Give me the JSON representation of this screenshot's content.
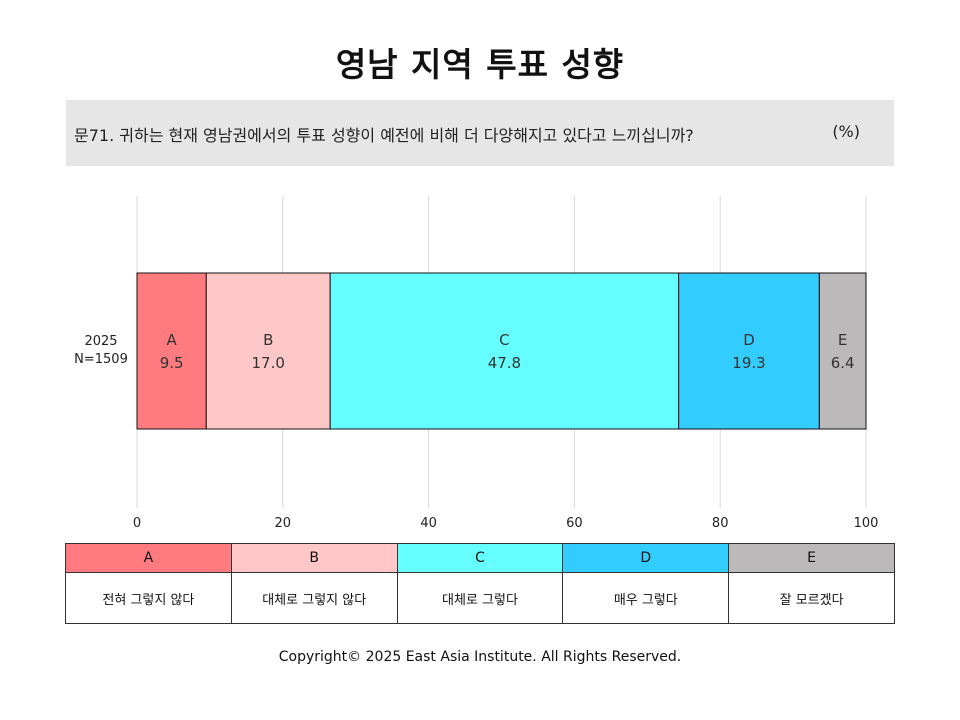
{
  "title": "영남 지역 투표 성향",
  "question": {
    "text": "문71. 귀하는 현재 영남권에서의 투표 성향이 예전에 비해 더 다양해지고 있다고 느끼십니까?",
    "unit": "(%)"
  },
  "chart_data": {
    "type": "bar",
    "orientation": "horizontal",
    "stacked": true,
    "categories": [
      "2025\nN=1509"
    ],
    "category_lines": [
      "2025",
      "N=1509"
    ],
    "series": [
      {
        "name": "A",
        "values": [
          9.5
        ],
        "color": "#ff7b80"
      },
      {
        "name": "B",
        "values": [
          17.0
        ],
        "color": "#ffc7c8"
      },
      {
        "name": "C",
        "values": [
          47.8
        ],
        "color": "#66ffff"
      },
      {
        "name": "D",
        "values": [
          19.3
        ],
        "color": "#33ccff"
      },
      {
        "name": "E",
        "values": [
          6.4
        ],
        "color": "#bbb9b9"
      }
    ],
    "xlim": [
      0,
      100
    ],
    "xticks": [
      "0",
      "20",
      "40",
      "60",
      "80",
      "100"
    ],
    "grid": true,
    "legend_position": "bottom-table"
  },
  "legend": {
    "keys": [
      "A",
      "B",
      "C",
      "D",
      "E"
    ],
    "descriptions": [
      "전혀 그렇지 않다",
      "대체로 그렇지 않다",
      "대체로 그렇다",
      "매우 그렇다",
      "잘 모르겠다"
    ]
  },
  "copyright": "Copyright© 2025 East Asia Institute. All Rights Reserved."
}
